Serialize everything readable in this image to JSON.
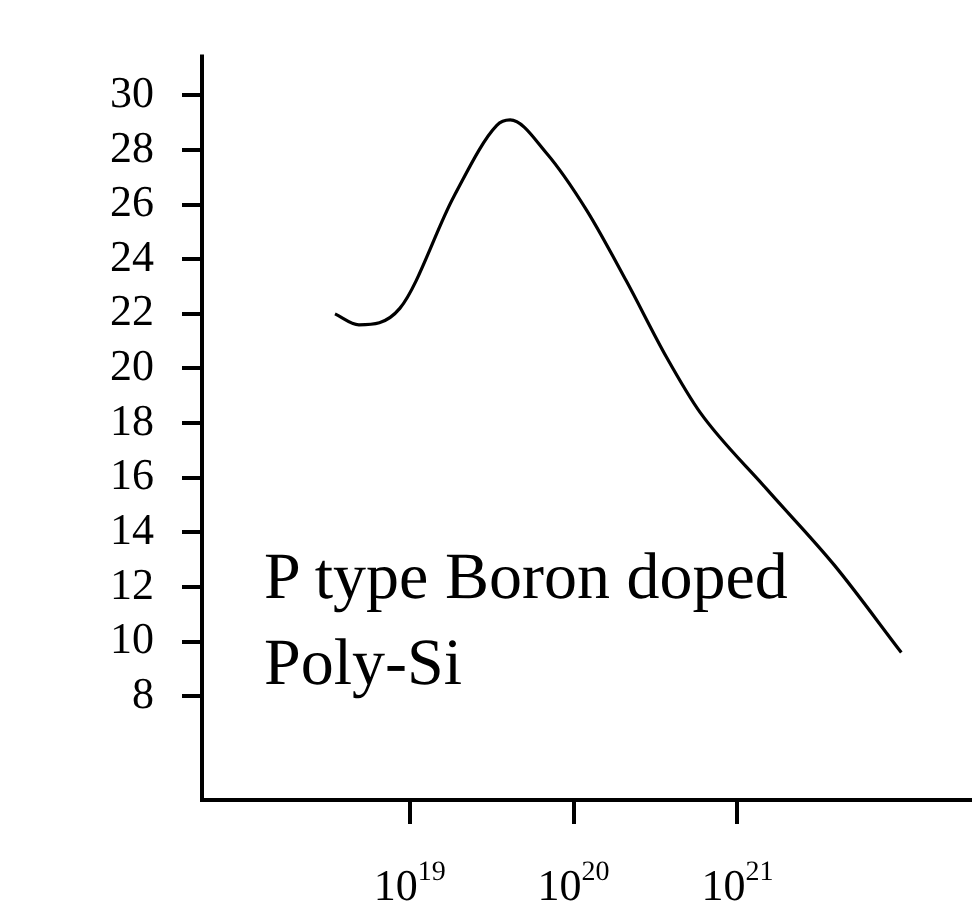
{
  "chart_data": {
    "type": "line",
    "log": "x",
    "x": [
      3.5e+18,
      4.9e+18,
      8.7e+18,
      1.86e+19,
      3.4e+19,
      4.1e+19,
      6.8e+19,
      1.2e+20,
      2.1e+20,
      3.7e+20,
      5.9e+20,
      1.5e+21,
      3.9e+21,
      1e+22
    ],
    "series": [
      {
        "color": "#000000",
        "values": [
          22.0,
          21.6,
          22.2,
          26.3,
          28.9,
          29.1,
          27.9,
          25.8,
          23.2,
          20.4,
          18.4,
          15.6,
          12.8,
          9.6
        ]
      }
    ],
    "xlim": [
      5.4e+17,
      2.7e+22
    ],
    "xticks": [
      {
        "value": 1e+19,
        "label": "10$^{19}$"
      },
      {
        "value": 1e+20,
        "label": "10$^{20}$"
      },
      {
        "value": 1e+21,
        "label": "10$^{21}$"
      }
    ],
    "ylim": [
      4.2,
      31.5
    ],
    "yticks": [
      8,
      10,
      12,
      14,
      16,
      18,
      20,
      22,
      24,
      26,
      28,
      30
    ],
    "annotations": [
      "P type Boron doped Poly-Si"
    ],
    "grid": false,
    "legend": false,
    "marker": "none",
    "line_style": "solid"
  }
}
